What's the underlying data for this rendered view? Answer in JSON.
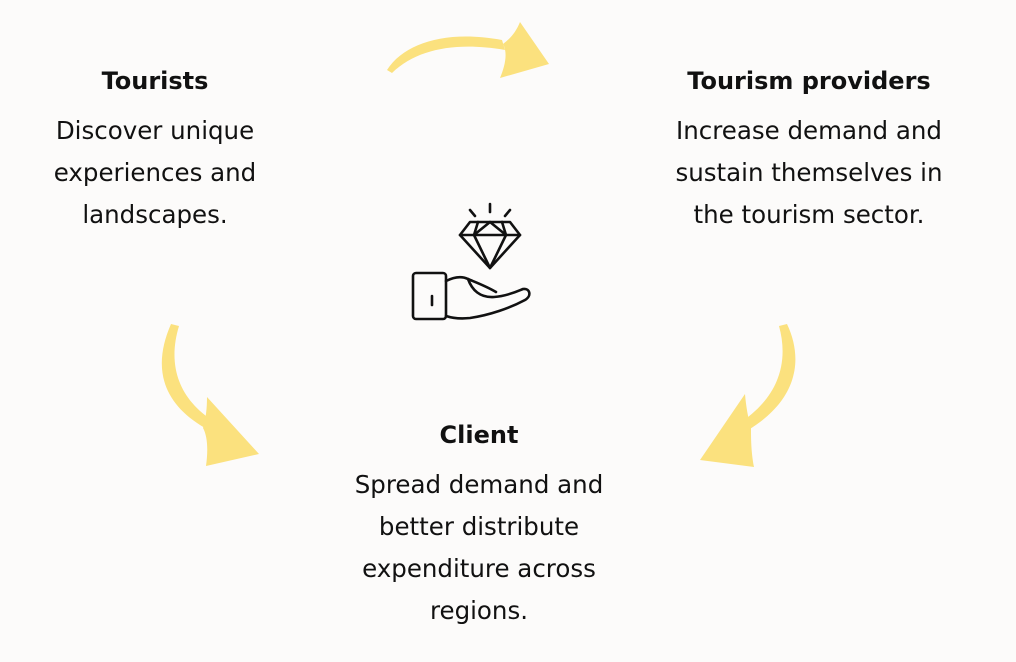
{
  "nodes": {
    "tourists": {
      "title": "Tourists",
      "lines": [
        "Discover unique",
        "experiences and",
        "landscapes."
      ]
    },
    "providers": {
      "title": "Tourism providers",
      "lines": [
        "Increase demand and",
        "sustain themselves in",
        "the tourism sector."
      ]
    },
    "client": {
      "title": "Client",
      "lines": [
        "Spread demand and",
        "better distribute",
        "expenditure across",
        "regions."
      ]
    }
  },
  "colors": {
    "background": "#fcfbfa",
    "arrow": "#fbe17e",
    "text": "#111111",
    "icon": "#111111"
  },
  "icons": {
    "center": "hand-holding-diamond-icon",
    "arrows": "curved-arrow-icon"
  }
}
